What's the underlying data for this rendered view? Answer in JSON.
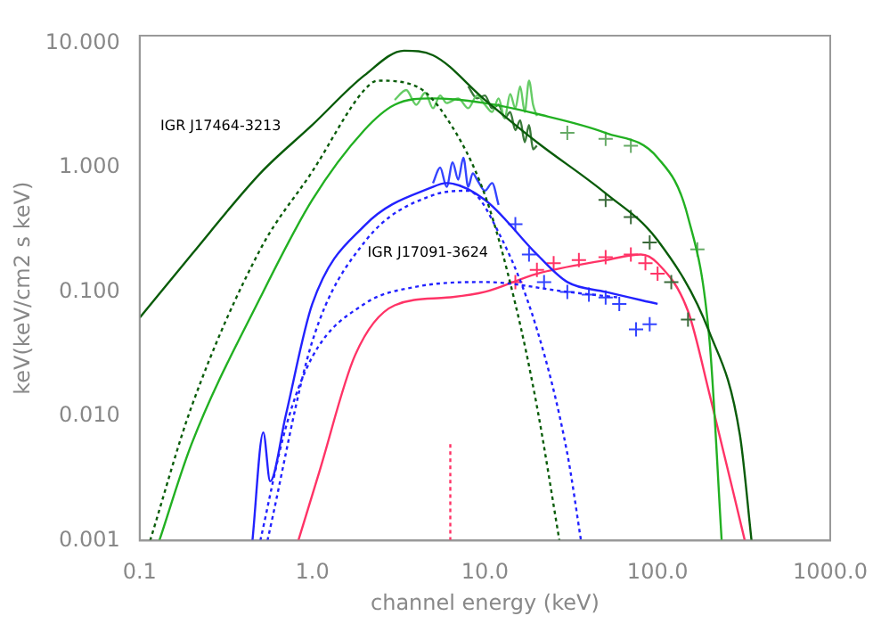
{
  "chart_data": {
    "type": "line",
    "xlabel": "channel energy (keV)",
    "ylabel": "keV(keV/cm2 s keV)",
    "log": "xy",
    "grid": false,
    "legend": false,
    "xlim": [
      0.1,
      1000
    ],
    "xticks": [
      {
        "value": 0.1,
        "label": "0.1"
      },
      {
        "value": 1,
        "label": "1.0"
      },
      {
        "value": 10,
        "label": "10.0"
      },
      {
        "value": 100,
        "label": "100.0"
      },
      {
        "value": 1000,
        "label": "1000.0"
      }
    ],
    "ylim": [
      0.001,
      11.5
    ],
    "yticks": [
      {
        "value": 0.001,
        "label": "0.001"
      },
      {
        "value": 0.01,
        "label": "0.010"
      },
      {
        "value": 0.1,
        "label": "0.100"
      },
      {
        "value": 1,
        "label": "1.000"
      },
      {
        "value": 10,
        "label": "10.000"
      }
    ],
    "annotations": [
      "IGR J17464-3213",
      "IGR J17091-3624"
    ],
    "series": [
      {
        "type": "line",
        "line_style": "solid",
        "color": "#0a5c0a",
        "x": [
          0.1,
          0.2,
          0.5,
          1,
          2,
          3.4,
          5,
          10,
          20,
          50,
          100,
          200,
          300,
          350
        ],
        "values": [
          0.062,
          0.2,
          0.9,
          2.2,
          5.5,
          8.7,
          8,
          3.5,
          1.6,
          0.62,
          0.26,
          0.047,
          0.007,
          0.001
        ]
      },
      {
        "type": "line",
        "line_style": "dotted",
        "color": "#0a5c0a",
        "x": [
          0.115,
          0.2,
          0.5,
          1,
          2,
          2.4,
          4,
          6,
          10,
          15,
          20,
          27
        ],
        "values": [
          0.001,
          0.012,
          0.22,
          0.93,
          4.2,
          5,
          4.5,
          2.5,
          0.6,
          0.08,
          0.012,
          0.001
        ]
      },
      {
        "type": "line",
        "line_style": "solid",
        "color": "#22b022",
        "x": [
          0.13,
          0.2,
          0.5,
          1,
          2,
          3,
          5,
          10,
          20,
          50,
          100,
          150,
          200,
          235
        ],
        "values": [
          0.001,
          0.006,
          0.09,
          0.55,
          2.0,
          3.2,
          3.6,
          3.3,
          2.7,
          1.9,
          1.2,
          0.4,
          0.04,
          0.001
        ]
      },
      {
        "type": "line",
        "line_style": "solid",
        "color": "#66cc66",
        "x": [
          3,
          3.5,
          4,
          4.5,
          5,
          5.5,
          6,
          7,
          8,
          9,
          10,
          11,
          12,
          13,
          14,
          15,
          16,
          17,
          18,
          19,
          20
        ],
        "values": [
          3.5,
          4.2,
          3.2,
          4.0,
          3.0,
          3.8,
          3.3,
          3.6,
          3.0,
          3.8,
          3.2,
          2.8,
          3.6,
          2.5,
          3.9,
          3.0,
          4.5,
          2.8,
          5.0,
          3.2,
          2.6
        ]
      },
      {
        "type": "line",
        "line_style": "solid",
        "color": "#3a7a3a",
        "x": [
          8,
          9,
          10,
          11,
          12,
          13,
          14,
          15,
          16,
          17,
          18,
          19,
          20
        ],
        "values": [
          4.5,
          3.6,
          3.8,
          3.0,
          3.2,
          2.5,
          2.8,
          2.0,
          2.4,
          1.6,
          2.2,
          1.4,
          1.5
        ]
      },
      {
        "type": "scatter",
        "marker": "cross",
        "color": "#66aa66",
        "x": [
          30,
          50,
          70,
          170
        ],
        "values": [
          1.9,
          1.7,
          1.5,
          0.22
        ]
      },
      {
        "type": "scatter",
        "marker": "cross",
        "color": "#3a6a3a",
        "x": [
          50,
          70,
          90,
          120,
          150
        ],
        "values": [
          0.55,
          0.4,
          0.25,
          0.12,
          0.06
        ]
      },
      {
        "type": "line",
        "line_style": "solid",
        "color": "#2222ff",
        "x": [
          0.45,
          0.52,
          0.57,
          0.7,
          1,
          2,
          5,
          6,
          10,
          20,
          30,
          50,
          100
        ],
        "values": [
          0.001,
          0.0074,
          0.003,
          0.01,
          0.08,
          0.34,
          0.7,
          0.75,
          0.55,
          0.2,
          0.12,
          0.1,
          0.08
        ]
      },
      {
        "type": "line",
        "line_style": "dotted",
        "color": "#2222ff",
        "x": [
          0.5,
          0.7,
          1,
          2,
          4,
          10,
          30,
          60
        ],
        "values": [
          0.001,
          0.008,
          0.03,
          0.08,
          0.11,
          0.12,
          0.1,
          0.09
        ]
      },
      {
        "type": "line",
        "line_style": "dotted",
        "color": "#2222ff",
        "x": [
          0.55,
          1,
          2,
          5,
          8,
          12,
          20,
          30,
          36
        ],
        "values": [
          0.001,
          0.04,
          0.25,
          0.6,
          0.65,
          0.3,
          0.05,
          0.005,
          0.001
        ]
      },
      {
        "type": "line",
        "line_style": "solid",
        "color": "#3344ff",
        "x": [
          5,
          5.5,
          6,
          6.5,
          7,
          7.5,
          8,
          8.5,
          9,
          10,
          11,
          12
        ],
        "values": [
          0.75,
          1.0,
          0.7,
          1.1,
          0.8,
          1.2,
          0.7,
          0.9,
          0.8,
          0.65,
          0.75,
          0.5
        ]
      },
      {
        "type": "scatter",
        "marker": "cross",
        "color": "#3344ff",
        "x": [
          15,
          18,
          22,
          30,
          40,
          50,
          60,
          75,
          90
        ],
        "values": [
          0.35,
          0.2,
          0.12,
          0.1,
          0.095,
          0.09,
          0.08,
          0.05,
          0.055
        ]
      },
      {
        "type": "line",
        "line_style": "solid",
        "color": "#ff3366",
        "x": [
          0.83,
          1.1,
          1.77,
          3,
          6,
          10,
          20,
          50,
          80,
          100,
          150,
          200,
          320
        ],
        "values": [
          0.001,
          0.0036,
          0.031,
          0.078,
          0.09,
          0.1,
          0.14,
          0.18,
          0.2,
          0.17,
          0.07,
          0.015,
          0.001
        ]
      },
      {
        "type": "line",
        "line_style": "dotted",
        "color": "#ff3366",
        "x": [
          6.3,
          6.3
        ],
        "values": [
          0.001,
          0.0063
        ]
      },
      {
        "type": "scatter",
        "marker": "cross",
        "color": "#ff3366",
        "x": [
          15,
          20,
          25,
          35,
          50,
          70,
          85,
          100
        ],
        "values": [
          0.12,
          0.15,
          0.17,
          0.18,
          0.19,
          0.2,
          0.17,
          0.14
        ]
      }
    ]
  }
}
